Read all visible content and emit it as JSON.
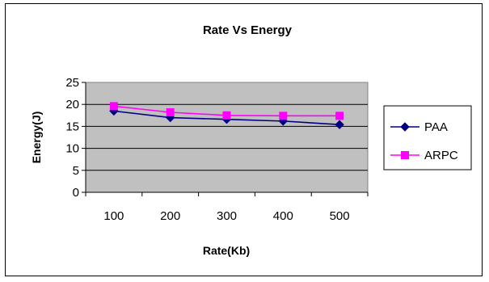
{
  "chart_data": {
    "type": "line",
    "title": "Rate Vs Energy",
    "xlabel": "Rate(Kb)",
    "ylabel": "Energy(J)",
    "categories": [
      "100",
      "200",
      "300",
      "400",
      "500"
    ],
    "ylim": [
      0,
      25
    ],
    "yticks": [
      0,
      5,
      10,
      15,
      20,
      25
    ],
    "grid": "horizontal",
    "plot_background": "#c0c0c0",
    "legend_position": "right",
    "series": [
      {
        "name": "PAA",
        "values": [
          18.5,
          17,
          16.6,
          16.2,
          15.4
        ],
        "color": "#000080",
        "marker": "diamond"
      },
      {
        "name": "ARPC",
        "values": [
          19.6,
          18.2,
          17.5,
          17.4,
          17.4
        ],
        "color": "#ff00ff",
        "marker": "square"
      }
    ]
  }
}
